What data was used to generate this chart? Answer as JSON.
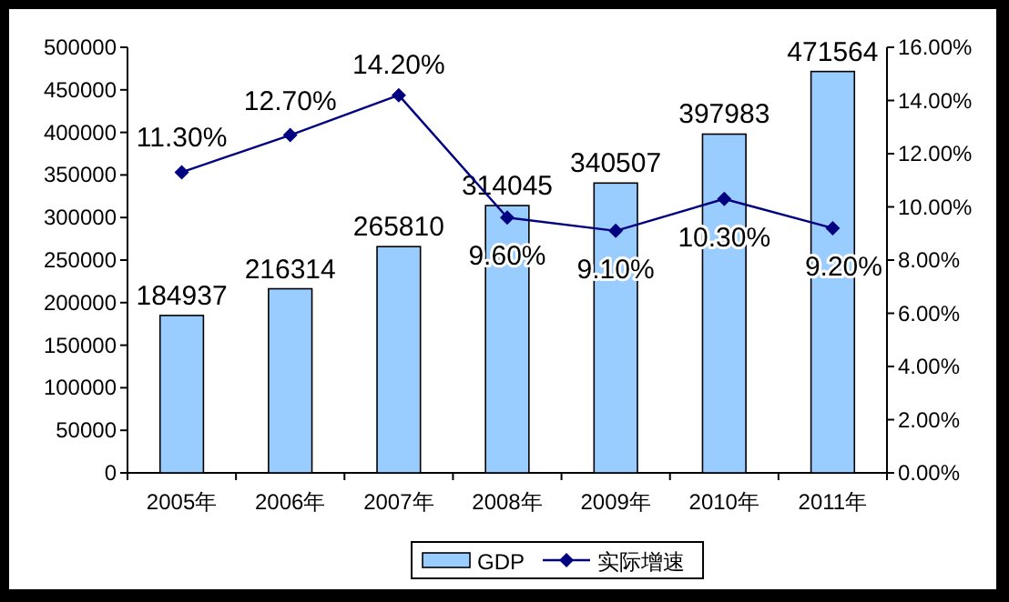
{
  "chart_data": {
    "type": "bar",
    "categories": [
      "2005年",
      "2006年",
      "2007年",
      "2008年",
      "2009年",
      "2010年",
      "2011年"
    ],
    "series": [
      {
        "name": "GDP",
        "color": "#99ccff",
        "values": [
          184937,
          216314,
          265810,
          314045,
          340507,
          397983,
          471564
        ],
        "value_labels": [
          "184937",
          "216314",
          "265810",
          "314045",
          "340507",
          "397983",
          "471564"
        ]
      },
      {
        "name": "实际增速",
        "type": "line",
        "axis": "y2",
        "color": "#000080",
        "values": [
          11.3,
          12.7,
          14.2,
          9.6,
          9.1,
          10.3,
          9.2
        ],
        "value_labels": [
          "11.30%",
          "12.70%",
          "14.20%",
          "9.60%",
          "9.10%",
          "10.30%",
          "9.20%"
        ]
      }
    ],
    "ylim": [
      0,
      500000
    ],
    "yticks": [
      0,
      50000,
      100000,
      150000,
      200000,
      250000,
      300000,
      350000,
      400000,
      450000,
      500000
    ],
    "y2lim": [
      0,
      16
    ],
    "y2ticks": [
      {
        "value": 0,
        "label": "0.00%"
      },
      {
        "value": 2,
        "label": "2.00%"
      },
      {
        "value": 4,
        "label": "4.00%"
      },
      {
        "value": 6,
        "label": "6.00%"
      },
      {
        "value": 8,
        "label": "8.00%"
      },
      {
        "value": 10,
        "label": "10.00%"
      },
      {
        "value": 12,
        "label": "12.00%"
      },
      {
        "value": 14,
        "label": "14.00%"
      },
      {
        "value": 16,
        "label": "16.00%"
      }
    ],
    "marker": "diamond",
    "line_style": "solid",
    "legend": "bottom",
    "grid": false
  }
}
